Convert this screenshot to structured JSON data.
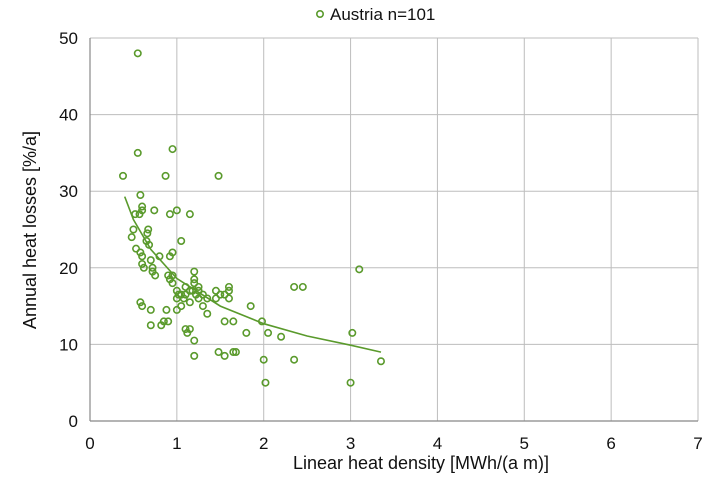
{
  "colors": {
    "series": "#5a9a2c",
    "grid": "#bdbdbd"
  },
  "chart_data": {
    "type": "scatter",
    "xlabel": "Linear heat density   [MWh/(a m)]",
    "ylabel": "Annual heat losses  [%/a]",
    "xlim": [
      0,
      7
    ],
    "ylim": [
      0,
      50
    ],
    "x_ticks": [
      "0",
      "1",
      "2",
      "3",
      "4",
      "5",
      "6",
      "7"
    ],
    "y_ticks": [
      "0",
      "10",
      "20",
      "30",
      "40",
      "50"
    ],
    "grid": true,
    "legend_position": "top-center",
    "series": [
      {
        "name": "Austria n=101",
        "marker": "hollow-circle",
        "points": [
          [
            0.55,
            48
          ],
          [
            0.95,
            35.5
          ],
          [
            0.55,
            35
          ],
          [
            0.38,
            32
          ],
          [
            0.87,
            32
          ],
          [
            1.48,
            32
          ],
          [
            0.58,
            29.5
          ],
          [
            0.6,
            28
          ],
          [
            0.6,
            27.5
          ],
          [
            0.57,
            27
          ],
          [
            0.52,
            27
          ],
          [
            0.74,
            27.5
          ],
          [
            1.0,
            27.5
          ],
          [
            1.15,
            27
          ],
          [
            0.92,
            27
          ],
          [
            0.5,
            25
          ],
          [
            0.67,
            25
          ],
          [
            0.48,
            24
          ],
          [
            0.68,
            23
          ],
          [
            1.05,
            23.5
          ],
          [
            0.53,
            22.5
          ],
          [
            0.58,
            22
          ],
          [
            0.6,
            21.5
          ],
          [
            0.7,
            21
          ],
          [
            0.92,
            21.5
          ],
          [
            0.95,
            22
          ],
          [
            0.8,
            21.5
          ],
          [
            0.6,
            20.5
          ],
          [
            0.62,
            20
          ],
          [
            0.72,
            20
          ],
          [
            0.75,
            19
          ],
          [
            1.2,
            19.5
          ],
          [
            0.9,
            19
          ],
          [
            0.92,
            18.5
          ],
          [
            1.2,
            18.5
          ],
          [
            0.95,
            18
          ],
          [
            1.1,
            17.5
          ],
          [
            1.2,
            18
          ],
          [
            1.25,
            17.5
          ],
          [
            1.0,
            17
          ],
          [
            1.15,
            17
          ],
          [
            1.05,
            16.5
          ],
          [
            1.1,
            16.5
          ],
          [
            1.25,
            17
          ],
          [
            1.3,
            16.5
          ],
          [
            1.45,
            17
          ],
          [
            1.6,
            17.5
          ],
          [
            1.6,
            17
          ],
          [
            1.5,
            16.5
          ],
          [
            1.0,
            16
          ],
          [
            1.08,
            16
          ],
          [
            1.15,
            15.5
          ],
          [
            1.25,
            16
          ],
          [
            1.35,
            16
          ],
          [
            1.45,
            16
          ],
          [
            1.55,
            16.5
          ],
          [
            1.6,
            16
          ],
          [
            1.05,
            15
          ],
          [
            1.3,
            15
          ],
          [
            1.85,
            15
          ],
          [
            0.58,
            15.5
          ],
          [
            0.6,
            15
          ],
          [
            0.7,
            14.5
          ],
          [
            0.88,
            14.5
          ],
          [
            1.0,
            14.5
          ],
          [
            1.35,
            14
          ],
          [
            1.55,
            13
          ],
          [
            1.65,
            13
          ],
          [
            1.98,
            13
          ],
          [
            0.7,
            12.5
          ],
          [
            0.82,
            12.5
          ],
          [
            0.85,
            13
          ],
          [
            0.9,
            13
          ],
          [
            1.1,
            12
          ],
          [
            1.12,
            11.5
          ],
          [
            1.15,
            12
          ],
          [
            1.8,
            11.5
          ],
          [
            2.05,
            11.5
          ],
          [
            2.2,
            11
          ],
          [
            1.2,
            10.5
          ],
          [
            3.02,
            11.5
          ],
          [
            1.48,
            9
          ],
          [
            1.55,
            8.5
          ],
          [
            1.65,
            9
          ],
          [
            1.68,
            9
          ],
          [
            1.2,
            8.5
          ],
          [
            2.0,
            8
          ],
          [
            2.35,
            8
          ],
          [
            3.35,
            7.8
          ],
          [
            2.02,
            5
          ],
          [
            3.0,
            5
          ],
          [
            2.35,
            17.5
          ],
          [
            2.45,
            17.5
          ],
          [
            3.1,
            19.8
          ],
          [
            1.22,
            16.5
          ],
          [
            1.18,
            17
          ],
          [
            0.65,
            23.5
          ],
          [
            0.66,
            24.5
          ],
          [
            0.72,
            19.5
          ],
          [
            0.95,
            19
          ],
          [
            1.02,
            16.5
          ]
        ]
      }
    ],
    "trendline": {
      "type": "power",
      "points": [
        [
          0.4,
          29.3
        ],
        [
          0.5,
          26.3
        ],
        [
          0.7,
          22.4
        ],
        [
          1.0,
          18.6
        ],
        [
          1.5,
          15.0
        ],
        [
          2.0,
          12.7
        ],
        [
          2.5,
          11.1
        ],
        [
          3.0,
          9.9
        ],
        [
          3.35,
          9.0
        ]
      ]
    }
  }
}
